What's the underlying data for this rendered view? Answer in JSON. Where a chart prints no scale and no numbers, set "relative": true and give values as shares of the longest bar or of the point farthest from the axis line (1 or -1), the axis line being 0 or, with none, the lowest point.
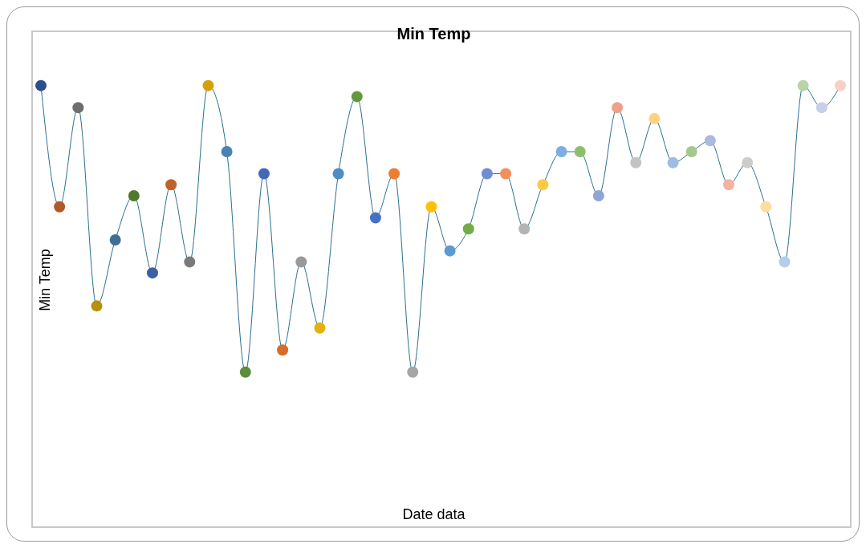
{
  "chart_data": {
    "type": "line",
    "title": "Min Temp",
    "xlabel": "Date data",
    "ylabel": "Min Temp",
    "relative": true,
    "marker": "circle",
    "categories": [
      null,
      null,
      null,
      null,
      null,
      null,
      null,
      null,
      null,
      null,
      null,
      null,
      null,
      null,
      null,
      null,
      null,
      null,
      null,
      null,
      null,
      null,
      null,
      null,
      null,
      null,
      null,
      null,
      null,
      null,
      null,
      null,
      null,
      null,
      null,
      null,
      null,
      null,
      null,
      null,
      null,
      null,
      null,
      null
    ],
    "series": [
      {
        "color": "#2a6f8f",
        "values": [
          1,
          0.725,
          0.95,
          0.5,
          0.65,
          0.75,
          0.575,
          0.775,
          0.6,
          1,
          0.85,
          0.35,
          0.8,
          0.4,
          0.6,
          0.45,
          0.8,
          0.975,
          0.7,
          0.8,
          0.35,
          0.725,
          0.625,
          0.675,
          0.8,
          0.8,
          0.675,
          0.775,
          0.85,
          0.85,
          0.75,
          0.95,
          0.825,
          0.925,
          0.825,
          0.85,
          0.875,
          0.775,
          0.825,
          0.725,
          0.6,
          1,
          0.95,
          1
        ],
        "colors": [
          "#2b4f8a",
          "#b05a28",
          "#6e6e6e",
          "#b8900a",
          "#3e6e96",
          "#4e7a2e",
          "#3b5fa8",
          "#c0632a",
          "#7a7a7a",
          "#d4a00a",
          "#4a82b4",
          "#5a8e3a",
          "#4468b8",
          "#d86a2c",
          "#999999",
          "#e6b00e",
          "#4f8cc4",
          "#64983e",
          "#4472c4",
          "#ed7d31",
          "#a5a5a5",
          "#ffc000",
          "#5b9bd5",
          "#70ad47",
          "#6f8ed4",
          "#f1905a",
          "#b4b4b4",
          "#ffca40",
          "#7caee0",
          "#8cbf6c",
          "#8fa5d8",
          "#f0a088",
          "#c3c3c3",
          "#ffd280",
          "#9dbde5",
          "#a5c88f",
          "#aab8e2",
          "#f4b4a0",
          "#cccccc",
          "#ffdca0",
          "#b4cde8",
          "#b8d4a8",
          "#c8cfe8",
          "#f8d0c4"
        ]
      }
    ]
  }
}
